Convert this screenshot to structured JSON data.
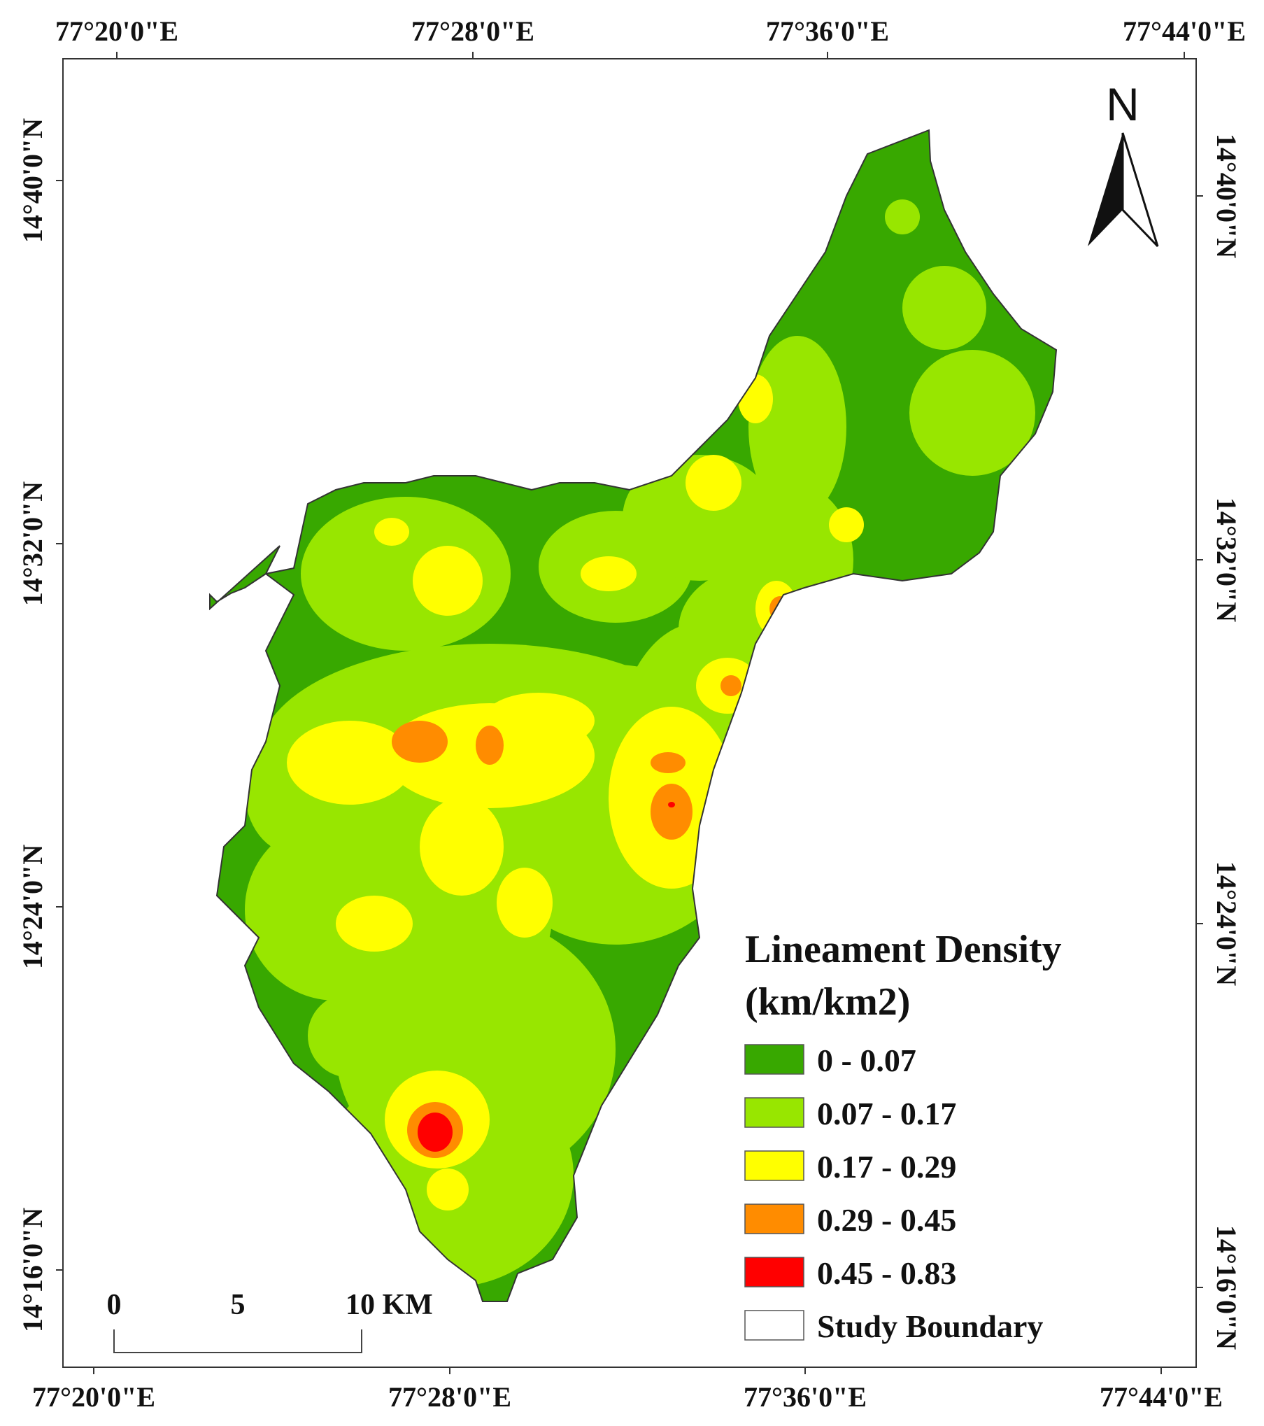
{
  "map": {
    "top_ticks": [
      "77°20'0\"E",
      "77°28'0\"E",
      "77°36'0\"E",
      "77°44'0\"E"
    ],
    "bottom_ticks": [
      "77°20'0\"E",
      "77°28'0\"E",
      "77°36'0\"E",
      "77°44'0\"E"
    ],
    "left_ticks": [
      "14°40'0\"N",
      "14°32'0\"N",
      "14°24'0\"N",
      "14°16'0\"N"
    ],
    "right_ticks": [
      "14°40'0\"N",
      "14°32'0\"N",
      "14°24'0\"N",
      "14°16'0\"N"
    ],
    "north_arrow": {
      "label": "N",
      "icon": "north-arrow-icon"
    }
  },
  "legend": {
    "title_line1": "Lineament Density",
    "title_line2": "(km/km2)",
    "classes": [
      {
        "label": "0 - 0.07",
        "color": "#38a800"
      },
      {
        "label": "0.07 - 0.17",
        "color": "#98e600"
      },
      {
        "label": "0.17 - 0.29",
        "color": "#ffff00"
      },
      {
        "label": "0.29 - 0.45",
        "color": "#ff8c00"
      },
      {
        "label": "0.45 - 0.83",
        "color": "#ff0000"
      }
    ],
    "boundary_label": "Study Boundary"
  },
  "scale_bar": {
    "labels": [
      "0",
      "5",
      "10 KM"
    ]
  }
}
